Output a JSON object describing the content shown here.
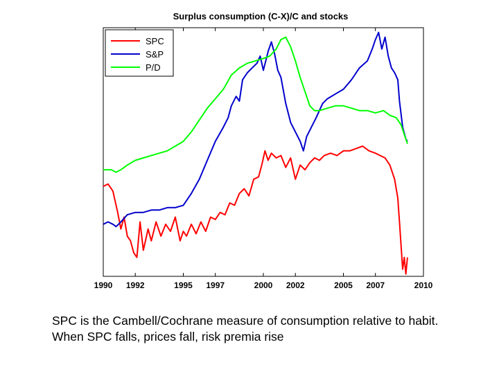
{
  "chart_data": {
    "type": "line",
    "title": "Surplus consumption (C-X)/C and stocks",
    "xlabel": "",
    "ylabel": "",
    "xlim": [
      1990,
      2010
    ],
    "x_ticks": [
      "1990",
      "1992",
      "1995",
      "1997",
      "2000",
      "2002",
      "2005",
      "2007",
      "2010"
    ],
    "grid": false,
    "legend_position": "top-left",
    "series": [
      {
        "name": "SPC",
        "color": "#ff0000",
        "points": [
          [
            1990.0,
            0.33
          ],
          [
            1990.3,
            0.34
          ],
          [
            1990.6,
            0.31
          ],
          [
            1990.9,
            0.22
          ],
          [
            1991.1,
            0.15
          ],
          [
            1991.3,
            0.2
          ],
          [
            1991.5,
            0.12
          ],
          [
            1991.7,
            0.1
          ],
          [
            1991.9,
            0.05
          ],
          [
            1992.1,
            0.03
          ],
          [
            1992.3,
            0.18
          ],
          [
            1992.5,
            0.06
          ],
          [
            1992.8,
            0.15
          ],
          [
            1993.0,
            0.1
          ],
          [
            1993.3,
            0.18
          ],
          [
            1993.6,
            0.12
          ],
          [
            1993.9,
            0.17
          ],
          [
            1994.2,
            0.14
          ],
          [
            1994.5,
            0.2
          ],
          [
            1994.8,
            0.1
          ],
          [
            1995.0,
            0.14
          ],
          [
            1995.2,
            0.12
          ],
          [
            1995.5,
            0.17
          ],
          [
            1995.8,
            0.13
          ],
          [
            1996.1,
            0.18
          ],
          [
            1996.4,
            0.14
          ],
          [
            1996.7,
            0.2
          ],
          [
            1997.0,
            0.19
          ],
          [
            1997.3,
            0.22
          ],
          [
            1997.6,
            0.21
          ],
          [
            1997.9,
            0.26
          ],
          [
            1998.2,
            0.25
          ],
          [
            1998.5,
            0.3
          ],
          [
            1998.8,
            0.32
          ],
          [
            1999.1,
            0.29
          ],
          [
            1999.4,
            0.36
          ],
          [
            1999.7,
            0.37
          ],
          [
            1999.9,
            0.42
          ],
          [
            2000.1,
            0.48
          ],
          [
            2000.3,
            0.44
          ],
          [
            2000.5,
            0.47
          ],
          [
            2000.8,
            0.45
          ],
          [
            2001.1,
            0.46
          ],
          [
            2001.4,
            0.41
          ],
          [
            2001.7,
            0.45
          ],
          [
            2002.0,
            0.36
          ],
          [
            2002.3,
            0.42
          ],
          [
            2002.6,
            0.4
          ],
          [
            2002.9,
            0.43
          ],
          [
            2003.2,
            0.45
          ],
          [
            2003.5,
            0.44
          ],
          [
            2003.8,
            0.46
          ],
          [
            2004.2,
            0.47
          ],
          [
            2004.6,
            0.46
          ],
          [
            2005.0,
            0.48
          ],
          [
            2005.4,
            0.48
          ],
          [
            2005.8,
            0.49
          ],
          [
            2006.2,
            0.5
          ],
          [
            2006.6,
            0.48
          ],
          [
            2007.0,
            0.47
          ],
          [
            2007.3,
            0.46
          ],
          [
            2007.6,
            0.45
          ],
          [
            2007.9,
            0.42
          ],
          [
            2008.2,
            0.36
          ],
          [
            2008.4,
            0.28
          ],
          [
            2008.5,
            0.18
          ],
          [
            2008.6,
            0.08
          ],
          [
            2008.7,
            -0.02
          ],
          [
            2008.8,
            0.03
          ],
          [
            2008.9,
            -0.04
          ],
          [
            2009.0,
            0.03
          ]
        ]
      },
      {
        "name": "S&P",
        "color": "#0000cc",
        "points": [
          [
            1990.0,
            0.17
          ],
          [
            1990.3,
            0.18
          ],
          [
            1990.6,
            0.17
          ],
          [
            1990.8,
            0.16
          ],
          [
            1991.1,
            0.18
          ],
          [
            1991.5,
            0.21
          ],
          [
            1992.0,
            0.22
          ],
          [
            1992.5,
            0.22
          ],
          [
            1993.0,
            0.23
          ],
          [
            1993.5,
            0.23
          ],
          [
            1994.0,
            0.24
          ],
          [
            1994.5,
            0.24
          ],
          [
            1995.0,
            0.25
          ],
          [
            1995.5,
            0.3
          ],
          [
            1996.0,
            0.36
          ],
          [
            1996.5,
            0.44
          ],
          [
            1997.0,
            0.52
          ],
          [
            1997.5,
            0.58
          ],
          [
            1997.8,
            0.62
          ],
          [
            1998.0,
            0.67
          ],
          [
            1998.3,
            0.71
          ],
          [
            1998.5,
            0.69
          ],
          [
            1998.7,
            0.78
          ],
          [
            1999.0,
            0.81
          ],
          [
            1999.3,
            0.83
          ],
          [
            1999.6,
            0.85
          ],
          [
            1999.8,
            0.88
          ],
          [
            2000.0,
            0.82
          ],
          [
            2000.3,
            0.9
          ],
          [
            2000.5,
            0.94
          ],
          [
            2000.7,
            0.89
          ],
          [
            2000.9,
            0.82
          ],
          [
            2001.1,
            0.79
          ],
          [
            2001.4,
            0.68
          ],
          [
            2001.7,
            0.6
          ],
          [
            2002.0,
            0.56
          ],
          [
            2002.3,
            0.52
          ],
          [
            2002.5,
            0.48
          ],
          [
            2002.7,
            0.54
          ],
          [
            2003.0,
            0.58
          ],
          [
            2003.3,
            0.62
          ],
          [
            2003.7,
            0.68
          ],
          [
            2004.0,
            0.7
          ],
          [
            2004.5,
            0.72
          ],
          [
            2005.0,
            0.74
          ],
          [
            2005.5,
            0.78
          ],
          [
            2006.0,
            0.83
          ],
          [
            2006.5,
            0.86
          ],
          [
            2006.8,
            0.91
          ],
          [
            2007.0,
            0.95
          ],
          [
            2007.2,
            0.98
          ],
          [
            2007.4,
            0.91
          ],
          [
            2007.6,
            0.96
          ],
          [
            2007.8,
            0.88
          ],
          [
            2008.0,
            0.83
          ],
          [
            2008.2,
            0.81
          ],
          [
            2008.4,
            0.78
          ],
          [
            2008.5,
            0.69
          ],
          [
            2008.7,
            0.58
          ],
          [
            2008.9,
            0.53
          ],
          [
            2009.0,
            0.52
          ]
        ]
      },
      {
        "name": "P/D",
        "color": "#00ff00",
        "points": [
          [
            1990.0,
            0.4
          ],
          [
            1990.5,
            0.4
          ],
          [
            1990.8,
            0.39
          ],
          [
            1991.1,
            0.4
          ],
          [
            1991.5,
            0.42
          ],
          [
            1992.0,
            0.44
          ],
          [
            1992.5,
            0.45
          ],
          [
            1993.0,
            0.46
          ],
          [
            1993.5,
            0.47
          ],
          [
            1994.0,
            0.48
          ],
          [
            1994.5,
            0.5
          ],
          [
            1995.0,
            0.52
          ],
          [
            1995.5,
            0.56
          ],
          [
            1996.0,
            0.61
          ],
          [
            1996.5,
            0.66
          ],
          [
            1997.0,
            0.7
          ],
          [
            1997.5,
            0.74
          ],
          [
            1998.0,
            0.8
          ],
          [
            1998.5,
            0.83
          ],
          [
            1999.0,
            0.85
          ],
          [
            1999.5,
            0.86
          ],
          [
            2000.0,
            0.87
          ],
          [
            2000.4,
            0.88
          ],
          [
            2000.8,
            0.91
          ],
          [
            2001.1,
            0.95
          ],
          [
            2001.4,
            0.96
          ],
          [
            2001.7,
            0.92
          ],
          [
            2002.0,
            0.86
          ],
          [
            2002.3,
            0.79
          ],
          [
            2002.6,
            0.73
          ],
          [
            2002.9,
            0.67
          ],
          [
            2003.2,
            0.65
          ],
          [
            2003.5,
            0.65
          ],
          [
            2004.0,
            0.66
          ],
          [
            2004.5,
            0.67
          ],
          [
            2005.0,
            0.67
          ],
          [
            2005.5,
            0.66
          ],
          [
            2006.0,
            0.65
          ],
          [
            2006.5,
            0.65
          ],
          [
            2007.0,
            0.64
          ],
          [
            2007.5,
            0.65
          ],
          [
            2007.9,
            0.63
          ],
          [
            2008.3,
            0.62
          ],
          [
            2008.6,
            0.59
          ],
          [
            2008.8,
            0.55
          ],
          [
            2009.0,
            0.51
          ]
        ]
      }
    ]
  },
  "caption": {
    "line1": "SPC is the Cambell/Cochrane measure of consumption relative to habit.",
    "line2": "When SPC falls, prices fall, risk premia rise"
  }
}
